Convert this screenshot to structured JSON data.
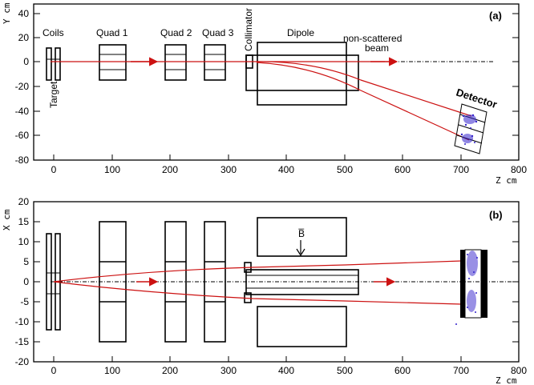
{
  "panel_a": {
    "tag": "(a)",
    "y_axis_label": "Y cm",
    "x_axis_label": "Z cm",
    "y_ticks": [
      "40",
      "20",
      "0",
      "-20",
      "-40",
      "-60",
      "-80"
    ],
    "x_ticks": [
      "0",
      "100",
      "200",
      "300",
      "400",
      "500",
      "600",
      "700",
      "800"
    ],
    "labels": {
      "coils": "Coils",
      "quad1": "Quad 1",
      "quad2": "Quad 2",
      "quad3": "Quad 3",
      "dipole": "Dipole",
      "collimator": "Collimator",
      "target": "Target",
      "non_scattered_1": "non-scattered",
      "non_scattered_2": "beam",
      "detector": "Detector"
    }
  },
  "panel_b": {
    "tag": "(b)",
    "y_axis_label": "X cm",
    "x_axis_label": "Z cm",
    "y_ticks": [
      "20",
      "15",
      "10",
      "5",
      "0",
      "-5",
      "-10",
      "-15",
      "-20"
    ],
    "x_ticks": [
      "0",
      "100",
      "200",
      "300",
      "400",
      "500",
      "600",
      "700",
      "800"
    ],
    "field_label": "B̅"
  },
  "colors": {
    "beam": "#cc1111",
    "hits": "#3322cc",
    "frame": "#000000"
  }
}
